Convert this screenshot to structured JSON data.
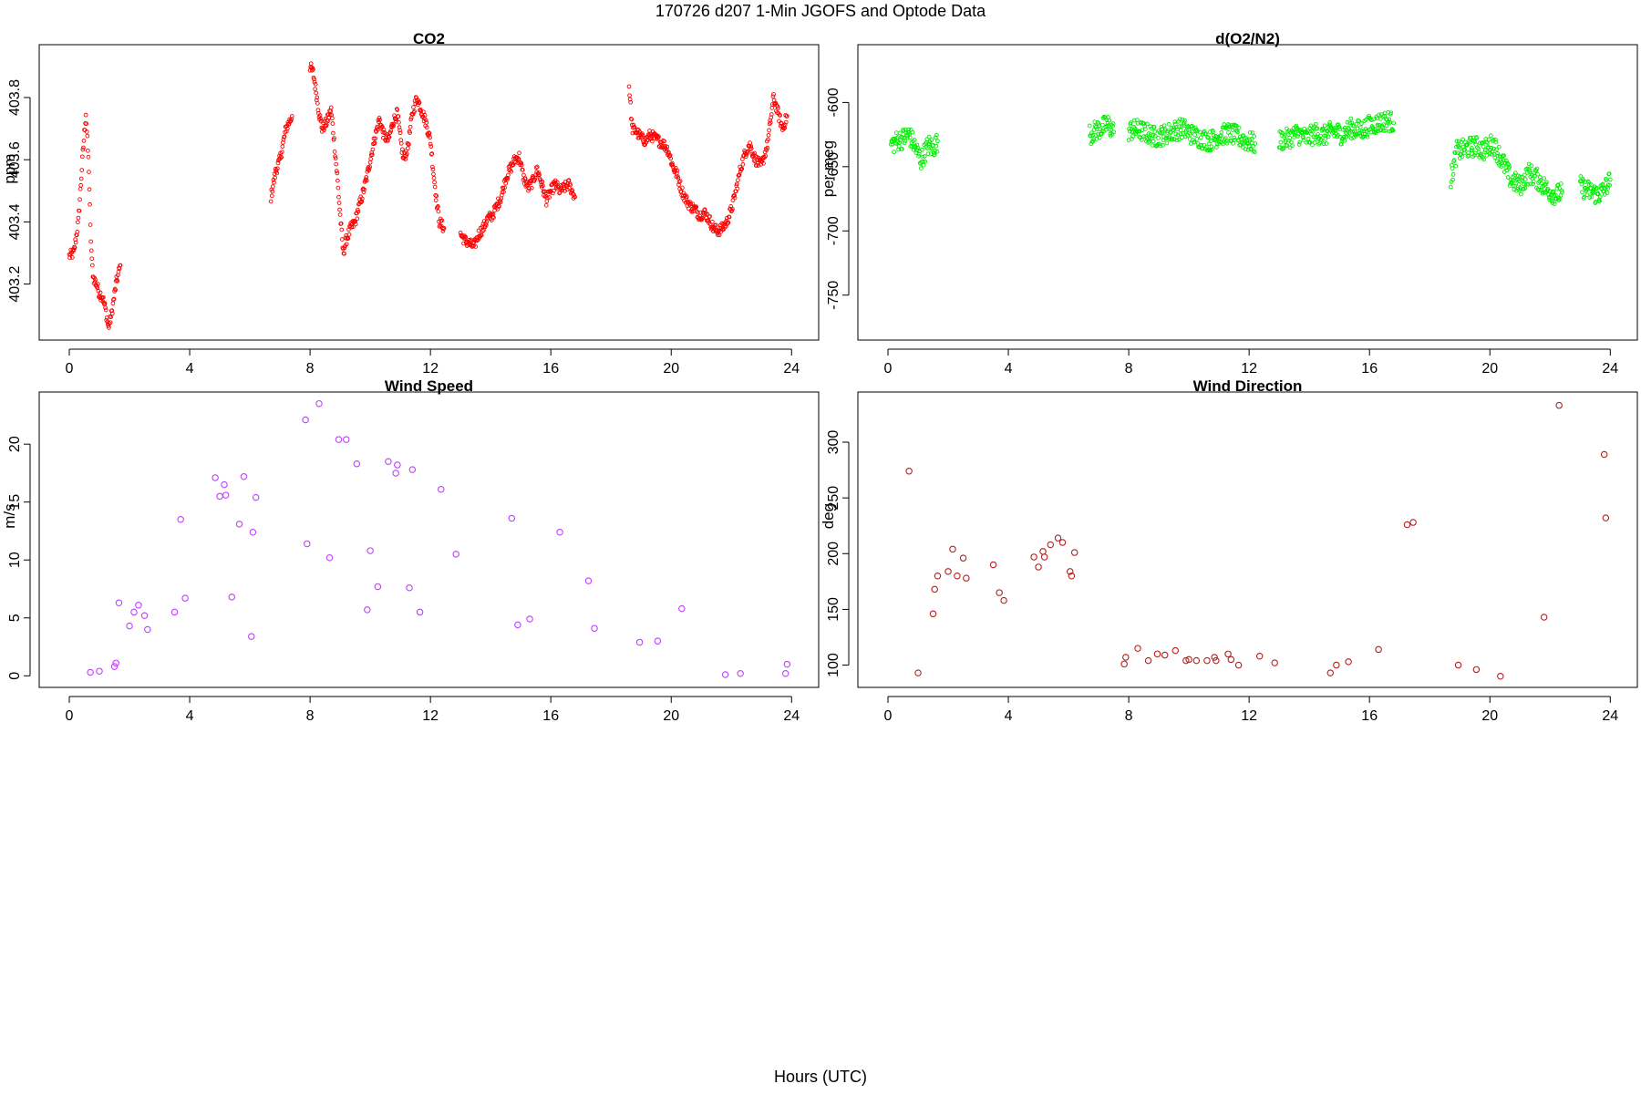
{
  "figure": {
    "title": "170726   d207   1-Min  JGOFS and Optode Data",
    "xlabel": "Hours (UTC)"
  },
  "chart_data": [
    {
      "id": "co2",
      "type": "scatter",
      "title": "CO2",
      "ylabel": "ppm",
      "color": "#ff0000",
      "xlim": [
        -1,
        24.9
      ],
      "ylim": [
        403.02,
        403.97
      ],
      "xticks": [
        0,
        4,
        8,
        12,
        16,
        20,
        24
      ],
      "yticks": [
        403.2,
        403.4,
        403.6,
        403.8
      ],
      "ytick_labels": [
        "403.2",
        "403.4",
        "403.6",
        "403.8"
      ],
      "segments": [
        [
          [
            0.0,
            403.29
          ],
          [
            0.15,
            403.3
          ],
          [
            0.3,
            403.4
          ],
          [
            0.45,
            403.62
          ],
          [
            0.55,
            403.75
          ],
          [
            0.65,
            403.57
          ],
          [
            0.7,
            403.38
          ],
          [
            0.75,
            403.27
          ],
          [
            0.8,
            403.22
          ],
          [
            0.9,
            403.2
          ],
          [
            1.0,
            403.17
          ],
          [
            1.1,
            403.16
          ],
          [
            1.2,
            403.12
          ],
          [
            1.3,
            403.06
          ],
          [
            1.4,
            403.1
          ],
          [
            1.55,
            403.2
          ],
          [
            1.7,
            403.26
          ]
        ],
        [
          [
            6.7,
            403.48
          ],
          [
            6.85,
            403.56
          ],
          [
            7.0,
            403.6
          ],
          [
            7.2,
            403.7
          ],
          [
            7.4,
            403.74
          ]
        ],
        [
          [
            8.0,
            403.9
          ],
          [
            8.1,
            403.88
          ],
          [
            8.2,
            403.82
          ],
          [
            8.3,
            403.75
          ],
          [
            8.4,
            403.7
          ],
          [
            8.55,
            403.72
          ],
          [
            8.7,
            403.76
          ],
          [
            8.8,
            403.66
          ],
          [
            8.9,
            403.55
          ],
          [
            9.0,
            403.42
          ],
          [
            9.1,
            403.3
          ],
          [
            9.2,
            403.34
          ],
          [
            9.35,
            403.38
          ],
          [
            9.5,
            403.4
          ],
          [
            9.6,
            403.44
          ],
          [
            9.75,
            403.49
          ],
          [
            9.9,
            403.55
          ],
          [
            10.0,
            403.6
          ],
          [
            10.15,
            403.67
          ],
          [
            10.3,
            403.73
          ],
          [
            10.45,
            403.68
          ],
          [
            10.6,
            403.66
          ],
          [
            10.75,
            403.72
          ],
          [
            10.9,
            403.75
          ],
          [
            11.0,
            403.67
          ],
          [
            11.1,
            403.6
          ],
          [
            11.25,
            403.64
          ],
          [
            11.4,
            403.75
          ],
          [
            11.55,
            403.8
          ],
          [
            11.7,
            403.76
          ],
          [
            11.85,
            403.72
          ],
          [
            12.0,
            403.66
          ],
          [
            12.1,
            403.56
          ],
          [
            12.2,
            403.47
          ],
          [
            12.3,
            403.4
          ],
          [
            12.45,
            403.38
          ]
        ],
        [
          [
            13.0,
            403.36
          ],
          [
            13.15,
            403.34
          ],
          [
            13.3,
            403.33
          ],
          [
            13.45,
            403.32
          ],
          [
            13.6,
            403.36
          ],
          [
            13.75,
            403.38
          ],
          [
            13.9,
            403.41
          ],
          [
            14.05,
            403.42
          ],
          [
            14.2,
            403.45
          ],
          [
            14.35,
            403.48
          ],
          [
            14.5,
            403.54
          ],
          [
            14.65,
            403.57
          ],
          [
            14.8,
            403.6
          ],
          [
            14.95,
            403.61
          ],
          [
            15.1,
            403.54
          ],
          [
            15.25,
            403.51
          ],
          [
            15.4,
            403.53
          ],
          [
            15.55,
            403.57
          ],
          [
            15.7,
            403.52
          ],
          [
            15.85,
            403.47
          ],
          [
            16.0,
            403.5
          ],
          [
            16.15,
            403.52
          ],
          [
            16.3,
            403.5
          ],
          [
            16.45,
            403.51
          ],
          [
            16.6,
            403.52
          ],
          [
            16.8,
            403.48
          ]
        ],
        [
          [
            18.6,
            403.84
          ],
          [
            18.7,
            403.7
          ],
          [
            18.85,
            403.69
          ],
          [
            19.0,
            403.67
          ],
          [
            19.15,
            403.66
          ],
          [
            19.3,
            403.68
          ],
          [
            19.45,
            403.67
          ],
          [
            19.6,
            403.66
          ],
          [
            19.75,
            403.65
          ],
          [
            19.9,
            403.63
          ],
          [
            20.05,
            403.58
          ],
          [
            20.2,
            403.55
          ],
          [
            20.35,
            403.5
          ],
          [
            20.5,
            403.47
          ],
          [
            20.65,
            403.45
          ],
          [
            20.8,
            403.44
          ],
          [
            20.95,
            403.42
          ],
          [
            21.1,
            403.43
          ],
          [
            21.25,
            403.41
          ],
          [
            21.4,
            403.38
          ],
          [
            21.55,
            403.37
          ],
          [
            21.7,
            403.38
          ],
          [
            21.85,
            403.4
          ],
          [
            22.0,
            403.44
          ],
          [
            22.15,
            403.5
          ],
          [
            22.3,
            403.57
          ],
          [
            22.45,
            403.62
          ],
          [
            22.6,
            403.65
          ],
          [
            22.8,
            403.6
          ],
          [
            23.0,
            403.58
          ],
          [
            23.2,
            403.65
          ],
          [
            23.4,
            403.8
          ],
          [
            23.55,
            403.75
          ],
          [
            23.7,
            403.7
          ],
          [
            23.85,
            403.74
          ]
        ]
      ]
    },
    {
      "id": "o2n2",
      "type": "scatter",
      "title": "d(O2/N2)",
      "ylabel": "per meg",
      "color": "#00ee00",
      "xlim": [
        -1,
        24.9
      ],
      "ylim": [
        -785,
        -555
      ],
      "xticks": [
        0,
        4,
        8,
        12,
        16,
        20,
        24
      ],
      "yticks": [
        -600,
        -650,
        -700,
        -750
      ],
      "ytick_labels": [
        "-600",
        "-650",
        "-700",
        "-750"
      ],
      "segments": [
        [
          [
            0.1,
            -633
          ],
          [
            0.3,
            -630
          ],
          [
            0.5,
            -628
          ],
          [
            0.7,
            -625
          ],
          [
            0.85,
            -632
          ],
          [
            1.0,
            -640
          ],
          [
            1.1,
            -645
          ],
          [
            1.2,
            -640
          ],
          [
            1.35,
            -633
          ],
          [
            1.5,
            -636
          ],
          [
            1.65,
            -630
          ]
        ],
        [
          [
            6.7,
            -625
          ],
          [
            6.9,
            -622
          ],
          [
            7.1,
            -620
          ],
          [
            7.3,
            -617
          ],
          [
            7.5,
            -623
          ]
        ],
        [
          [
            8.0,
            -622
          ],
          [
            8.3,
            -621
          ],
          [
            8.6,
            -624
          ],
          [
            8.9,
            -627
          ],
          [
            9.2,
            -625
          ],
          [
            9.5,
            -622
          ],
          [
            9.8,
            -620
          ],
          [
            10.1,
            -625
          ],
          [
            10.4,
            -628
          ],
          [
            10.7,
            -630
          ],
          [
            11.0,
            -626
          ],
          [
            11.3,
            -624
          ],
          [
            11.6,
            -626
          ],
          [
            11.9,
            -630
          ],
          [
            12.2,
            -632
          ]
        ],
        [
          [
            13.0,
            -630
          ],
          [
            13.3,
            -628
          ],
          [
            13.6,
            -624
          ],
          [
            13.9,
            -628
          ],
          [
            14.2,
            -624
          ],
          [
            14.5,
            -626
          ],
          [
            14.8,
            -622
          ],
          [
            15.1,
            -625
          ],
          [
            15.4,
            -620
          ],
          [
            15.7,
            -622
          ],
          [
            16.0,
            -618
          ],
          [
            16.3,
            -616
          ],
          [
            16.6,
            -614
          ],
          [
            16.8,
            -616
          ]
        ],
        [
          [
            18.7,
            -660
          ],
          [
            18.9,
            -638
          ],
          [
            19.2,
            -636
          ],
          [
            19.5,
            -634
          ],
          [
            19.8,
            -637
          ],
          [
            20.1,
            -632
          ],
          [
            20.4,
            -645
          ],
          [
            20.7,
            -660
          ],
          [
            21.0,
            -665
          ],
          [
            21.3,
            -655
          ],
          [
            21.6,
            -660
          ],
          [
            21.9,
            -668
          ],
          [
            22.2,
            -672
          ],
          [
            22.4,
            -670
          ]
        ],
        [
          [
            23.0,
            -665
          ],
          [
            23.2,
            -668
          ],
          [
            23.4,
            -670
          ],
          [
            23.6,
            -672
          ],
          [
            23.8,
            -668
          ],
          [
            24.0,
            -660
          ]
        ]
      ]
    },
    {
      "id": "wind_speed",
      "type": "scatter",
      "title": "Wind Speed",
      "ylabel": "m/s",
      "color": "#bf40ff",
      "xlim": [
        -1,
        24.9
      ],
      "ylim": [
        -1,
        24.5
      ],
      "xticks": [
        0,
        4,
        8,
        12,
        16,
        20,
        24
      ],
      "yticks": [
        0,
        5,
        10,
        15,
        20
      ],
      "ytick_labels": [
        "0",
        "5",
        "10",
        "15",
        "20"
      ],
      "points": [
        [
          0.7,
          0.3
        ],
        [
          1.0,
          0.4
        ],
        [
          1.5,
          0.8
        ],
        [
          1.55,
          1.1
        ],
        [
          1.65,
          6.3
        ],
        [
          2.0,
          4.3
        ],
        [
          2.15,
          5.5
        ],
        [
          2.3,
          6.1
        ],
        [
          2.5,
          5.2
        ],
        [
          2.6,
          4.0
        ],
        [
          3.5,
          5.5
        ],
        [
          3.7,
          13.5
        ],
        [
          3.85,
          6.7
        ],
        [
          4.85,
          17.1
        ],
        [
          5.0,
          15.5
        ],
        [
          5.15,
          16.5
        ],
        [
          5.2,
          15.6
        ],
        [
          5.4,
          6.8
        ],
        [
          5.65,
          13.1
        ],
        [
          5.8,
          17.2
        ],
        [
          6.05,
          3.4
        ],
        [
          6.1,
          12.4
        ],
        [
          6.2,
          15.4
        ],
        [
          7.85,
          22.1
        ],
        [
          7.9,
          11.4
        ],
        [
          8.3,
          23.5
        ],
        [
          8.65,
          10.2
        ],
        [
          8.95,
          20.4
        ],
        [
          9.2,
          20.4
        ],
        [
          9.55,
          18.3
        ],
        [
          9.9,
          5.7
        ],
        [
          10.0,
          10.8
        ],
        [
          10.25,
          7.7
        ],
        [
          10.6,
          18.5
        ],
        [
          10.85,
          17.5
        ],
        [
          10.9,
          18.2
        ],
        [
          11.3,
          7.6
        ],
        [
          11.4,
          17.8
        ],
        [
          11.65,
          5.5
        ],
        [
          12.35,
          16.1
        ],
        [
          12.85,
          10.5
        ],
        [
          14.7,
          13.6
        ],
        [
          14.9,
          4.4
        ],
        [
          15.3,
          4.9
        ],
        [
          16.3,
          12.4
        ],
        [
          17.25,
          8.2
        ],
        [
          17.45,
          4.1
        ],
        [
          18.95,
          2.9
        ],
        [
          19.55,
          3.0
        ],
        [
          20.35,
          5.8
        ],
        [
          21.8,
          0.1
        ],
        [
          22.3,
          0.2
        ],
        [
          23.8,
          0.2
        ],
        [
          23.85,
          1.0
        ]
      ]
    },
    {
      "id": "wind_direction",
      "type": "scatter",
      "title": "Wind Direction",
      "ylabel": "deg",
      "color": "#b22222",
      "xlim": [
        -1,
        24.9
      ],
      "ylim": [
        80,
        345
      ],
      "xticks": [
        0,
        4,
        8,
        12,
        16,
        20,
        24
      ],
      "yticks": [
        100,
        150,
        200,
        250,
        300
      ],
      "ytick_labels": [
        "100",
        "150",
        "200",
        "250",
        "300"
      ],
      "points": [
        [
          0.7,
          274
        ],
        [
          1.0,
          93
        ],
        [
          1.5,
          146
        ],
        [
          1.55,
          168
        ],
        [
          1.65,
          180
        ],
        [
          2.0,
          184
        ],
        [
          2.15,
          204
        ],
        [
          2.3,
          180
        ],
        [
          2.5,
          196
        ],
        [
          2.6,
          178
        ],
        [
          3.5,
          190
        ],
        [
          3.7,
          165
        ],
        [
          3.85,
          158
        ],
        [
          4.85,
          197
        ],
        [
          5.0,
          188
        ],
        [
          5.15,
          202
        ],
        [
          5.2,
          197
        ],
        [
          5.4,
          208
        ],
        [
          5.65,
          214
        ],
        [
          5.8,
          210
        ],
        [
          6.05,
          184
        ],
        [
          6.1,
          180
        ],
        [
          6.2,
          201
        ],
        [
          7.85,
          101
        ],
        [
          7.9,
          107
        ],
        [
          8.3,
          115
        ],
        [
          8.65,
          104
        ],
        [
          8.95,
          110
        ],
        [
          9.2,
          109
        ],
        [
          9.55,
          113
        ],
        [
          9.9,
          104
        ],
        [
          10.0,
          105
        ],
        [
          10.25,
          104
        ],
        [
          10.6,
          104
        ],
        [
          10.85,
          107
        ],
        [
          10.9,
          104
        ],
        [
          11.3,
          110
        ],
        [
          11.4,
          105
        ],
        [
          11.65,
          100
        ],
        [
          12.35,
          108
        ],
        [
          12.85,
          102
        ],
        [
          14.7,
          93
        ],
        [
          14.9,
          100
        ],
        [
          15.3,
          103
        ],
        [
          16.3,
          114
        ],
        [
          17.25,
          226
        ],
        [
          17.45,
          228
        ],
        [
          18.95,
          100
        ],
        [
          19.55,
          96
        ],
        [
          20.35,
          90
        ],
        [
          21.8,
          143
        ],
        [
          22.3,
          333
        ],
        [
          23.8,
          289
        ],
        [
          23.85,
          232
        ]
      ]
    }
  ]
}
